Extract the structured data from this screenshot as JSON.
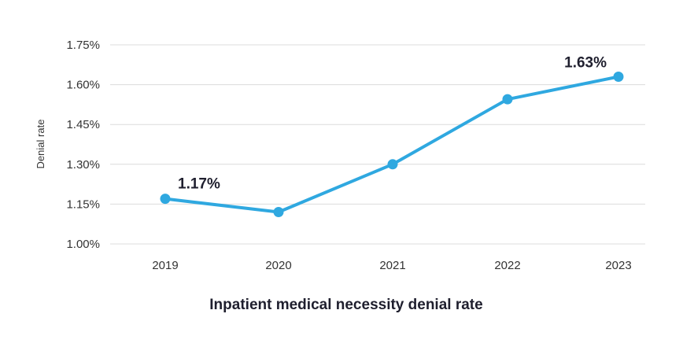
{
  "chart_data": {
    "type": "line",
    "title": "",
    "caption": "Inpatient medical necessity denial rate",
    "xlabel": "",
    "ylabel": "Denial rate",
    "categories": [
      "2019",
      "2020",
      "2021",
      "2022",
      "2023"
    ],
    "series": [
      {
        "values": [
          1.17,
          1.12,
          1.3,
          1.545,
          1.63
        ]
      }
    ],
    "ylim": [
      1.0,
      1.75
    ],
    "yticks": [
      1.0,
      1.15,
      1.3,
      1.45,
      1.6,
      1.75
    ],
    "ytick_labels": [
      "1.00%",
      "1.15%",
      "1.30%",
      "1.45%",
      "1.60%",
      "1.75%"
    ],
    "data_labels": [
      {
        "index": 0,
        "text": "1.17%"
      },
      {
        "index": 4,
        "text": "1.63%"
      }
    ],
    "grid": true,
    "line_color": "#2fa8e0"
  }
}
